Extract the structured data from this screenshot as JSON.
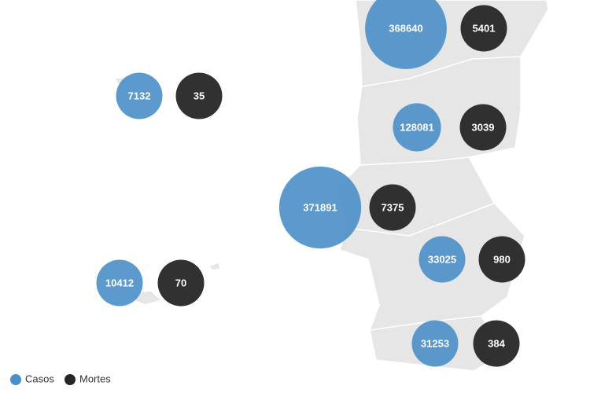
{
  "map": {
    "series": [
      {
        "name": "Casos",
        "color": "#4a8fc9"
      },
      {
        "name": "Mortes",
        "color": "#262626"
      }
    ],
    "regions": [
      {
        "casos": 368640,
        "mortes": 5401
      },
      {
        "casos": 7132,
        "mortes": 35
      },
      {
        "casos": 128081,
        "mortes": 3039
      },
      {
        "casos": 371891,
        "mortes": 7375
      },
      {
        "casos": 33025,
        "mortes": 980
      },
      {
        "casos": 10412,
        "mortes": 70
      },
      {
        "casos": 31253,
        "mortes": 384
      }
    ]
  }
}
